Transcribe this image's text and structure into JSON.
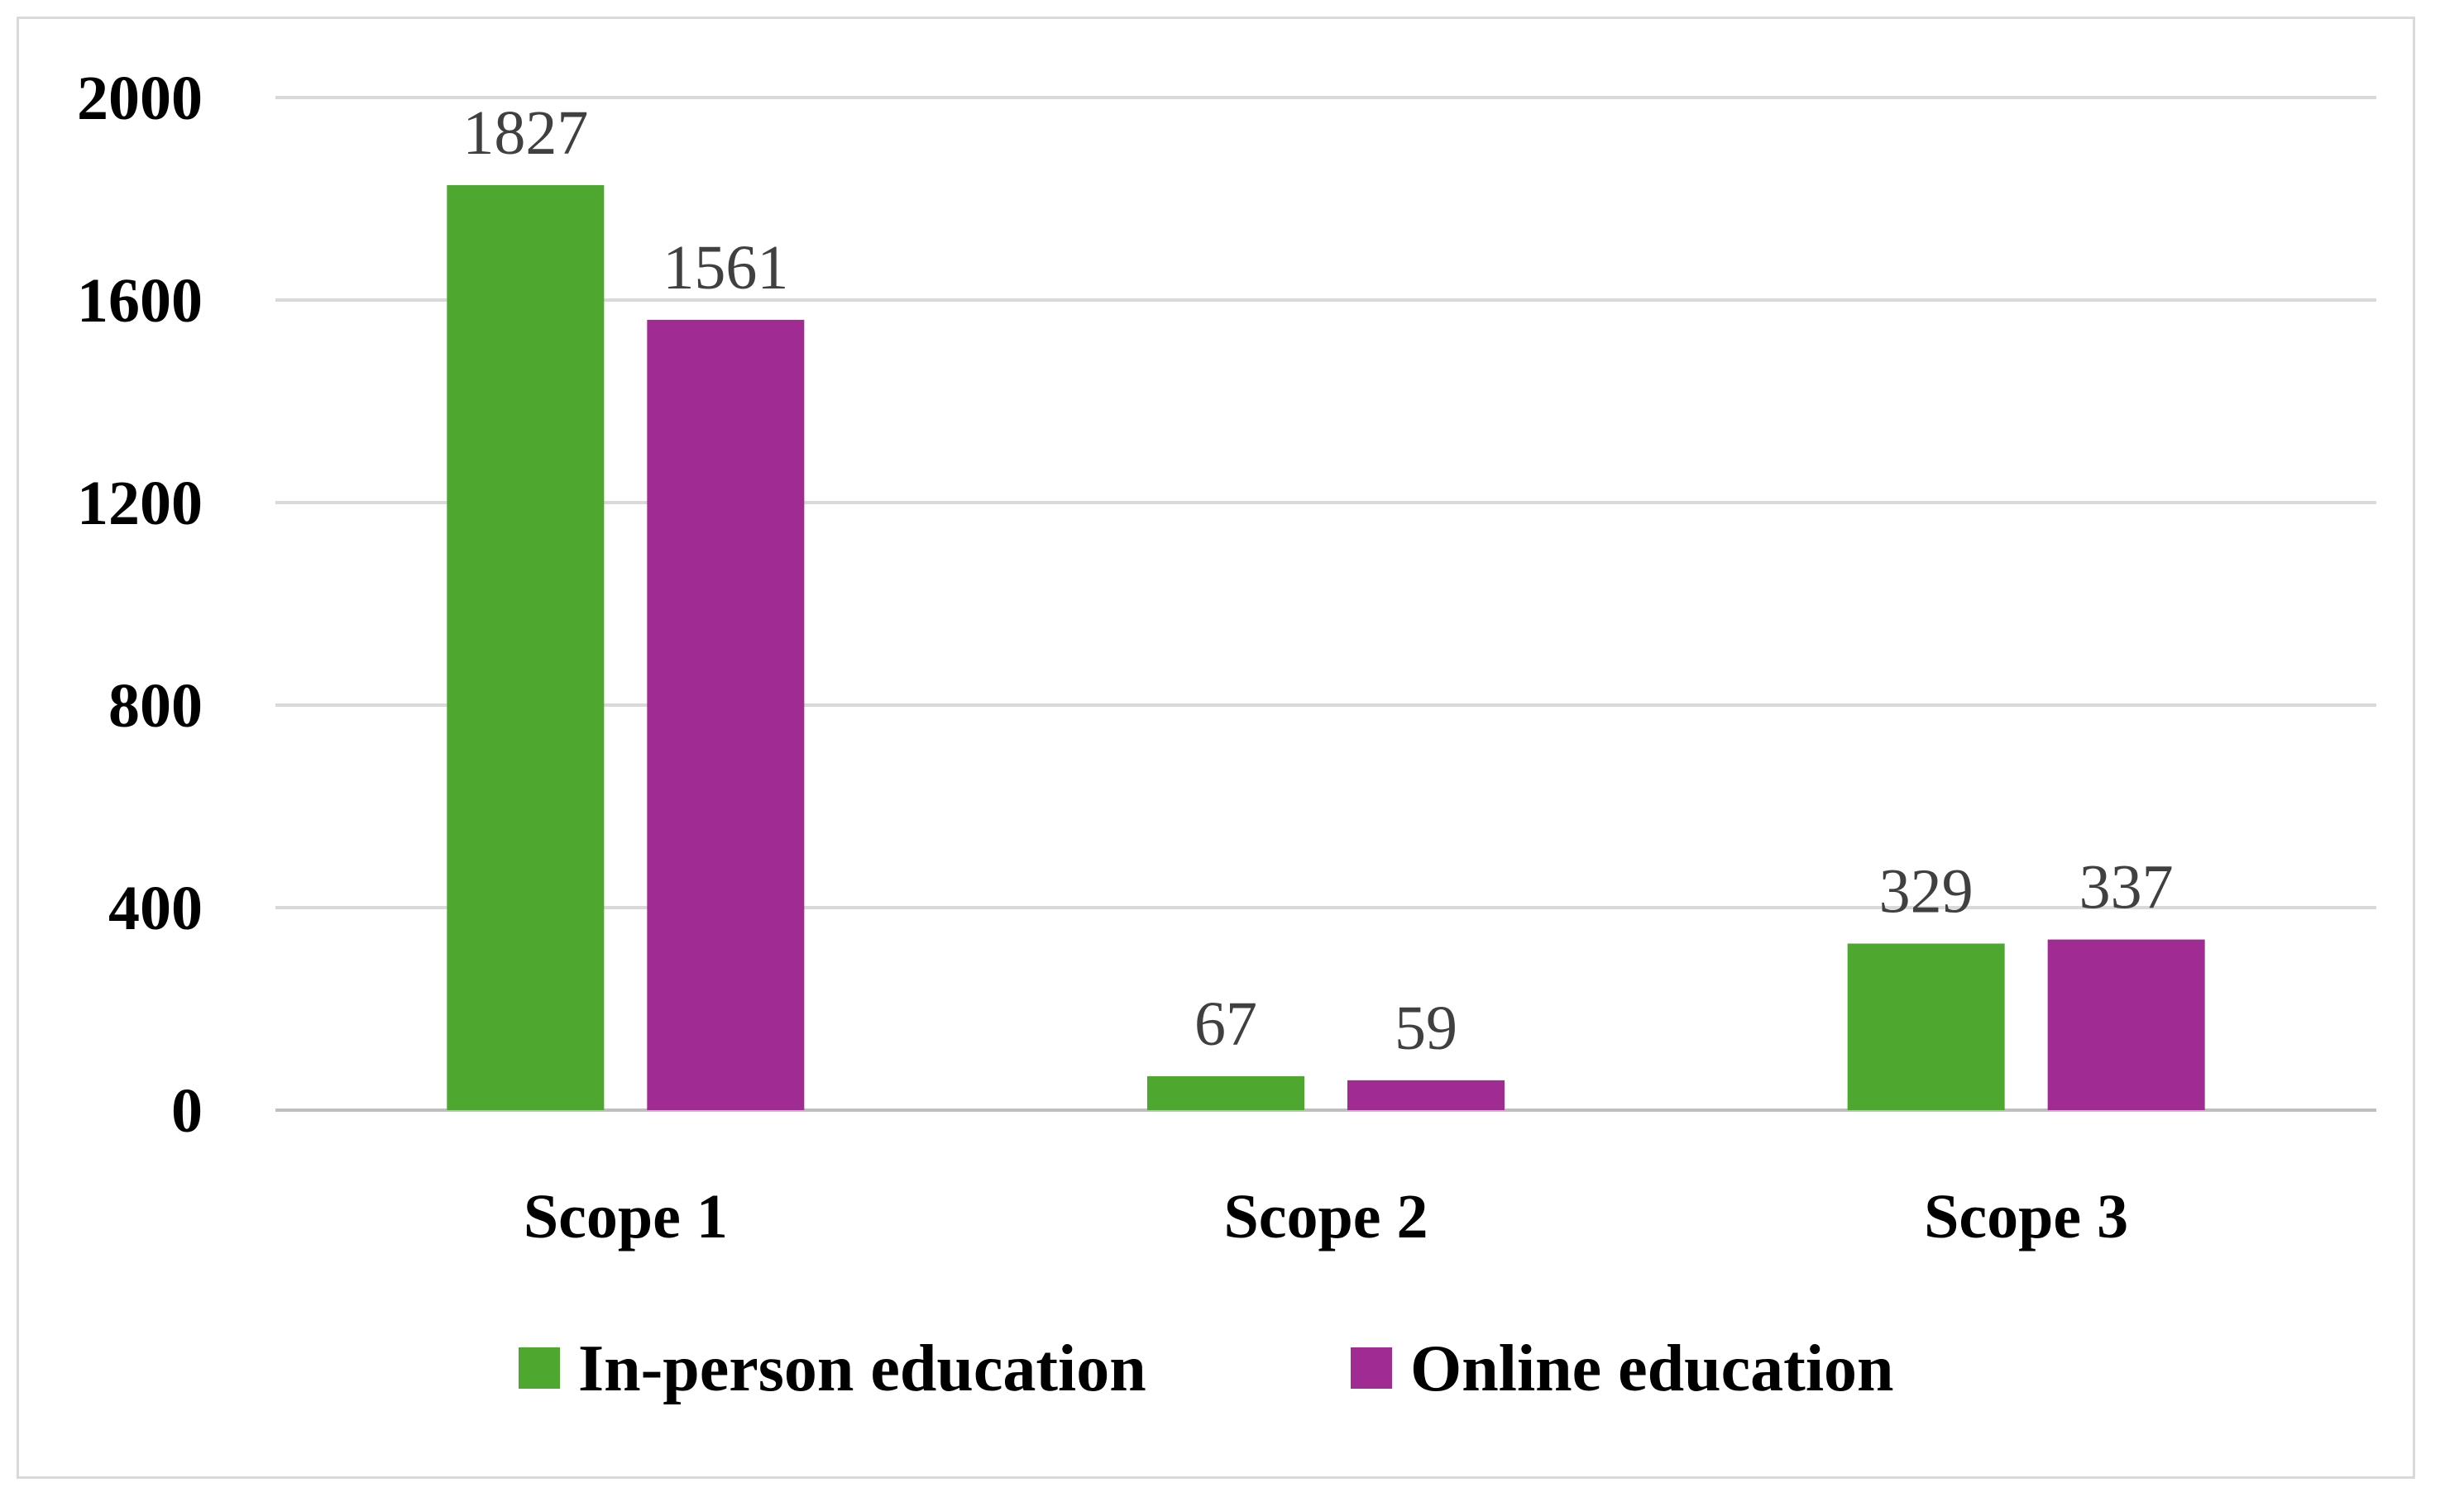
{
  "chart_data": {
    "type": "bar",
    "categories": [
      "Scope 1",
      "Scope 2",
      "Scope 3"
    ],
    "series": [
      {
        "name": "In-person education",
        "values": [
          1827,
          67,
          329
        ],
        "color": "#4ea72e"
      },
      {
        "name": "Online education",
        "values": [
          1561,
          59,
          337
        ],
        "color": "#a02b93"
      }
    ],
    "yticks": [
      "0",
      "400",
      "800",
      "1200",
      "1600",
      "2000"
    ],
    "ylim": [
      0,
      2000
    ],
    "grid": true,
    "legend_position": "bottom",
    "data_labels": true
  }
}
